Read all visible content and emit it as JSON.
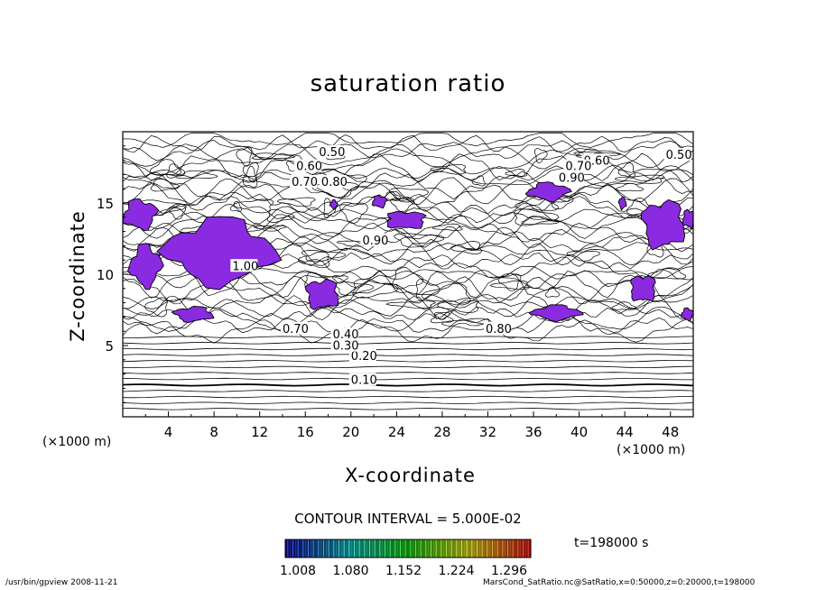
{
  "chart_data": {
    "type": "contour",
    "title": "saturation ratio",
    "xlabel": "X-coordinate",
    "ylabel": "Z-coordinate",
    "x_unit_left": "(×1000 m)",
    "x_unit_right": "(×1000 m)",
    "xlim": [
      0,
      50
    ],
    "ylim": [
      0,
      20
    ],
    "x_ticks": [
      4,
      8,
      12,
      16,
      20,
      24,
      28,
      32,
      36,
      40,
      44,
      48
    ],
    "y_ticks": [
      5,
      10,
      15
    ],
    "contour_labels": [
      "0.10",
      "0.20",
      "0.30",
      "0.40",
      "0.50",
      "0.60",
      "0.70",
      "0.80",
      "0.90",
      "1.00"
    ],
    "contour_interval": "CONTOUR INTERVAL = 5.000E-02",
    "colorbar_ticks": [
      "1.008",
      "1.080",
      "1.152",
      "1.224",
      "1.296"
    ],
    "supersaturated_fill_color": "#8a2be2",
    "time": "t=198000 s"
  },
  "footer": {
    "left": "/usr/bin/gpview   2008-11-21",
    "right": "MarsCond_SatRatio.nc@SatRatio,x=0:50000,z=0:20000,t=198000"
  }
}
